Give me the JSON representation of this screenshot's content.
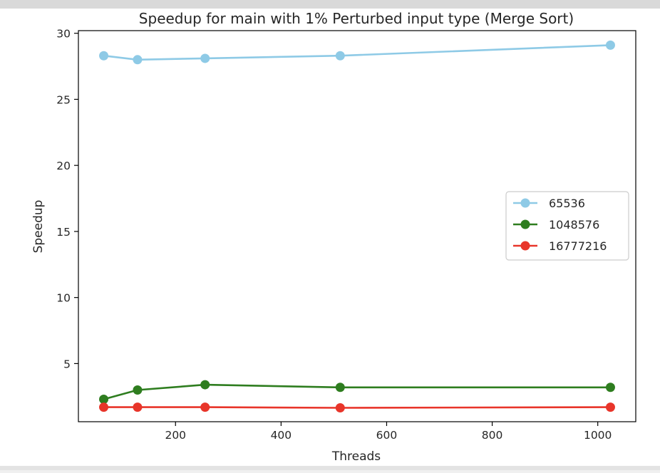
{
  "chart_data": {
    "type": "line",
    "title": "Speedup for main with 1% Perturbed input type (Merge Sort)",
    "xlabel": "Threads",
    "ylabel": "Speedup",
    "x": [
      64,
      128,
      256,
      512,
      1024
    ],
    "xlim": [
      16,
      1072
    ],
    "ylim": [
      0.6,
      30.2
    ],
    "xticks": [
      200,
      400,
      600,
      800,
      1000
    ],
    "yticks": [
      5,
      10,
      15,
      20,
      25,
      30
    ],
    "grid": false,
    "legend_position": "center-right",
    "series": [
      {
        "name": "65536",
        "color": "#8ecae6",
        "values": [
          28.3,
          28.0,
          28.1,
          28.3,
          29.1
        ]
      },
      {
        "name": "1048576",
        "color": "#2e7d1f",
        "values": [
          2.3,
          3.0,
          3.4,
          3.2,
          3.2
        ]
      },
      {
        "name": "16777216",
        "color": "#e8352a",
        "values": [
          1.7,
          1.7,
          1.7,
          1.65,
          1.7
        ]
      }
    ]
  }
}
